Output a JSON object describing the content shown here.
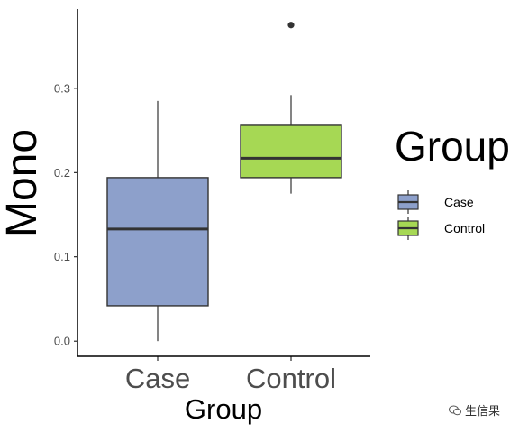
{
  "chart_data": {
    "type": "box",
    "xlabel": "Group",
    "ylabel": "Mono",
    "ylim": [
      -0.018,
      0.394
    ],
    "yticks": [
      0.0,
      0.1,
      0.2,
      0.3
    ],
    "ytick_labels": [
      "0.0",
      "0.1",
      "0.2",
      "0.3"
    ],
    "categories": [
      "Case",
      "Control"
    ],
    "boxes": [
      {
        "category": "Case",
        "whisker_low": 0.0,
        "q1": 0.042,
        "median": 0.133,
        "q3": 0.194,
        "whisker_high": 0.285,
        "outliers": [],
        "color": "#8da0cb"
      },
      {
        "category": "Control",
        "whisker_low": 0.175,
        "q1": 0.194,
        "median": 0.217,
        "q3": 0.256,
        "whisker_high": 0.292,
        "outliers": [
          0.375
        ],
        "color": "#a6d854"
      }
    ],
    "legend": {
      "title": "Group",
      "position": "right",
      "entries": [
        {
          "label": "Case",
          "color": "#8da0cb"
        },
        {
          "label": "Control",
          "color": "#a6d854"
        }
      ]
    },
    "grid": false
  },
  "watermark": {
    "text": "生信果"
  }
}
